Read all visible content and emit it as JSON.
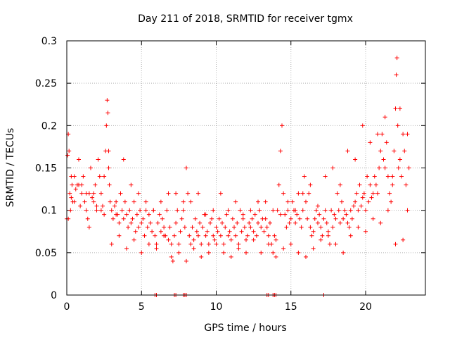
{
  "chart_data": {
    "type": "scatter",
    "title": "Day 211 of 2018, SRMTID for receiver tgmx",
    "xlabel": "GPS time / hours",
    "ylabel": "SRMTID / TECUs",
    "xlim": [
      0,
      24
    ],
    "ylim": [
      0,
      0.3
    ],
    "xticks": [
      0,
      5,
      10,
      15,
      20
    ],
    "xtick_labels": [
      "0",
      "5",
      "10",
      "15",
      "20"
    ],
    "yticks": [
      0,
      0.05,
      0.1,
      0.15,
      0.2,
      0.25,
      0.3
    ],
    "ytick_labels": [
      "0",
      "0.05",
      "0.1",
      "0.15",
      "0.2",
      "0.25",
      "0.3"
    ],
    "grid": true,
    "marker": "plus",
    "series": [
      {
        "name": "SRMTID",
        "color": "#ff0000",
        "x": [
          0.0,
          0.05,
          0.1,
          0.15,
          0.2,
          0.25,
          0.3,
          0.35,
          0.4,
          0.5,
          0.6,
          0.7,
          0.8,
          0.9,
          1.0,
          1.1,
          1.2,
          1.3,
          1.4,
          1.5,
          1.6,
          1.7,
          1.8,
          1.9,
          2.0,
          2.1,
          2.2,
          2.3,
          2.4,
          2.5,
          2.6,
          2.65,
          2.7,
          2.75,
          2.8,
          2.85,
          2.9,
          3.0,
          3.1,
          3.2,
          3.3,
          3.4,
          3.5,
          3.6,
          3.7,
          3.8,
          3.9,
          4.0,
          4.1,
          4.2,
          4.3,
          4.4,
          4.5,
          4.6,
          4.7,
          4.8,
          4.9,
          5.0,
          5.1,
          5.2,
          5.3,
          5.4,
          5.5,
          5.6,
          5.7,
          5.8,
          5.9,
          6.0,
          6.1,
          6.2,
          6.3,
          6.4,
          6.5,
          6.6,
          6.7,
          6.8,
          6.9,
          7.0,
          7.1,
          7.2,
          7.3,
          7.4,
          7.5,
          7.6,
          7.7,
          7.8,
          7.9,
          8.0,
          8.1,
          8.2,
          8.3,
          8.4,
          8.5,
          8.6,
          8.7,
          8.8,
          8.9,
          9.0,
          9.1,
          9.2,
          9.3,
          9.4,
          9.5,
          9.6,
          9.7,
          9.8,
          9.9,
          10.0,
          10.1,
          10.2,
          10.3,
          10.4,
          10.5,
          10.6,
          10.7,
          10.8,
          10.9,
          11.0,
          11.1,
          11.2,
          11.3,
          11.4,
          11.5,
          11.6,
          11.7,
          11.8,
          11.9,
          12.0,
          12.1,
          12.2,
          12.3,
          12.4,
          12.5,
          12.6,
          12.7,
          12.8,
          12.9,
          13.0,
          13.1,
          13.2,
          13.3,
          13.4,
          13.5,
          13.6,
          13.7,
          13.8,
          13.9,
          14.0,
          14.1,
          14.2,
          14.3,
          14.4,
          14.5,
          14.6,
          14.7,
          14.8,
          14.9,
          15.0,
          15.1,
          15.2,
          15.3,
          15.4,
          15.5,
          15.6,
          15.7,
          15.8,
          15.9,
          16.0,
          16.1,
          16.2,
          16.3,
          16.4,
          16.5,
          16.6,
          16.7,
          16.8,
          16.9,
          17.0,
          17.1,
          17.2,
          17.3,
          17.4,
          17.5,
          17.6,
          17.7,
          17.8,
          17.9,
          18.0,
          18.1,
          18.2,
          18.3,
          18.4,
          18.5,
          18.6,
          18.7,
          18.8,
          18.9,
          19.0,
          19.1,
          19.2,
          19.3,
          19.4,
          19.5,
          19.6,
          19.7,
          19.8,
          19.9,
          20.0,
          20.1,
          20.2,
          20.3,
          20.4,
          20.5,
          20.6,
          20.7,
          20.8,
          20.9,
          21.0,
          21.1,
          21.2,
          21.3,
          21.4,
          21.5,
          21.6,
          21.7,
          21.8,
          21.9,
          22.0,
          22.05,
          22.1,
          22.15,
          22.2,
          22.3,
          22.4,
          22.5,
          22.6,
          22.7,
          22.8,
          22.9,
          0.1,
          0.5,
          1.0,
          1.5,
          2.0,
          2.5,
          3.0,
          3.5,
          4.0,
          4.5,
          5.0,
          5.5,
          6.0,
          6.5,
          7.0,
          7.5,
          8.0,
          8.5,
          9.0,
          9.5,
          10.0,
          10.5,
          11.0,
          11.5,
          12.0,
          12.5,
          13.0,
          13.5,
          14.0,
          14.5,
          15.0,
          15.5,
          16.0,
          16.5,
          17.0,
          17.5,
          18.0,
          18.5,
          19.0,
          19.5,
          20.0,
          20.5,
          21.0,
          21.5,
          22.0,
          22.5,
          0.3,
          0.8,
          1.3,
          1.8,
          2.3,
          2.8,
          3.3,
          3.8,
          4.3,
          4.8,
          5.3,
          5.8,
          6.3,
          6.8,
          7.3,
          7.8,
          8.3,
          8.8,
          9.3,
          9.8,
          10.3,
          10.8,
          11.3,
          11.8,
          12.3,
          12.8,
          13.3,
          13.8,
          14.3,
          14.8,
          15.3,
          15.8,
          16.3,
          16.8,
          17.3,
          17.8,
          18.3,
          18.8,
          19.3,
          19.8,
          20.3,
          20.8,
          21.3,
          21.8,
          22.3,
          22.8,
          5.9,
          6.0,
          7.2,
          7.3,
          7.8,
          7.9,
          8.0,
          13.4,
          13.5,
          13.8,
          13.9,
          14.0,
          17.2
        ],
        "y": [
          0.09,
          0.165,
          0.19,
          0.17,
          0.12,
          0.1,
          0.115,
          0.13,
          0.11,
          0.14,
          0.125,
          0.13,
          0.16,
          0.105,
          0.13,
          0.14,
          0.11,
          0.1,
          0.09,
          0.12,
          0.15,
          0.115,
          0.12,
          0.13,
          0.1,
          0.16,
          0.14,
          0.12,
          0.105,
          0.14,
          0.17,
          0.2,
          0.23,
          0.215,
          0.17,
          0.13,
          0.11,
          0.1,
          0.09,
          0.105,
          0.11,
          0.095,
          0.085,
          0.12,
          0.1,
          0.09,
          0.11,
          0.095,
          0.08,
          0.1,
          0.085,
          0.09,
          0.11,
          0.075,
          0.095,
          0.08,
          0.1,
          0.085,
          0.09,
          0.07,
          0.1,
          0.08,
          0.095,
          0.085,
          0.075,
          0.1,
          0.07,
          0.06,
          0.085,
          0.095,
          0.075,
          0.09,
          0.08,
          0.07,
          0.1,
          0.065,
          0.08,
          0.06,
          0.04,
          0.07,
          0.085,
          0.1,
          0.06,
          0.075,
          0.09,
          0.11,
          0.08,
          0.15,
          0.12,
          0.07,
          0.06,
          0.08,
          0.065,
          0.09,
          0.075,
          0.07,
          0.085,
          0.06,
          0.08,
          0.095,
          0.07,
          0.075,
          0.06,
          0.085,
          0.09,
          0.07,
          0.065,
          0.08,
          0.075,
          0.09,
          0.07,
          0.085,
          0.06,
          0.08,
          0.095,
          0.07,
          0.075,
          0.065,
          0.09,
          0.08,
          0.07,
          0.085,
          0.06,
          0.1,
          0.075,
          0.09,
          0.08,
          0.065,
          0.07,
          0.085,
          0.08,
          0.09,
          0.075,
          0.095,
          0.07,
          0.085,
          0.1,
          0.08,
          0.09,
          0.075,
          0.11,
          0.08,
          0.07,
          0.085,
          0.06,
          0.05,
          0.07,
          0.065,
          0.1,
          0.13,
          0.17,
          0.2,
          0.12,
          0.095,
          0.08,
          0.1,
          0.085,
          0.09,
          0.11,
          0.1,
          0.085,
          0.095,
          0.12,
          0.09,
          0.08,
          0.1,
          0.14,
          0.11,
          0.09,
          0.12,
          0.08,
          0.07,
          0.075,
          0.09,
          0.1,
          0.085,
          0.095,
          0.08,
          0.07,
          0.09,
          0.1,
          0.085,
          0.075,
          0.06,
          0.1,
          0.08,
          0.095,
          0.09,
          0.12,
          0.1,
          0.085,
          0.11,
          0.09,
          0.1,
          0.095,
          0.085,
          0.08,
          0.1,
          0.09,
          0.105,
          0.11,
          0.12,
          0.1,
          0.13,
          0.105,
          0.115,
          0.12,
          0.1,
          0.14,
          0.11,
          0.13,
          0.115,
          0.12,
          0.14,
          0.13,
          0.12,
          0.15,
          0.17,
          0.19,
          0.16,
          0.21,
          0.18,
          0.14,
          0.12,
          0.11,
          0.13,
          0.17,
          0.22,
          0.26,
          0.28,
          0.2,
          0.15,
          0.16,
          0.14,
          0.19,
          0.17,
          0.13,
          0.1,
          0.15,
          0.09,
          0.11,
          0.12,
          0.08,
          0.105,
          0.095,
          0.06,
          0.07,
          0.055,
          0.065,
          0.05,
          0.06,
          0.055,
          0.07,
          0.045,
          0.05,
          0.04,
          0.055,
          0.045,
          0.05,
          0.06,
          0.05,
          0.045,
          0.055,
          0.05,
          0.065,
          0.05,
          0.06,
          0.045,
          0.055,
          0.06,
          0.05,
          0.045,
          0.055,
          0.065,
          0.07,
          0.06,
          0.05,
          0.07,
          0.08,
          0.075,
          0.09,
          0.085,
          0.1,
          0.06,
          0.065,
          0.14,
          0.13,
          0.12,
          0.11,
          0.1,
          0.15,
          0.095,
          0.16,
          0.13,
          0.12,
          0.11,
          0.1,
          0.11,
          0.12,
          0.12,
          0.1,
          0.11,
          0.12,
          0.095,
          0.1,
          0.12,
          0.1,
          0.11,
          0.095,
          0.1,
          0.11,
          0.09,
          0.1,
          0.095,
          0.11,
          0.1,
          0.12,
          0.13,
          0.105,
          0.14,
          0.15,
          0.13,
          0.17,
          0.16,
          0.2,
          0.18,
          0.19,
          0.15,
          0.14,
          0.22,
          0.19,
          0.0,
          0.0,
          0.0,
          0.0,
          0.0,
          0.0,
          0.0,
          0.0,
          0.0,
          0.0,
          0.0,
          0.0,
          0.0
        ]
      }
    ]
  }
}
